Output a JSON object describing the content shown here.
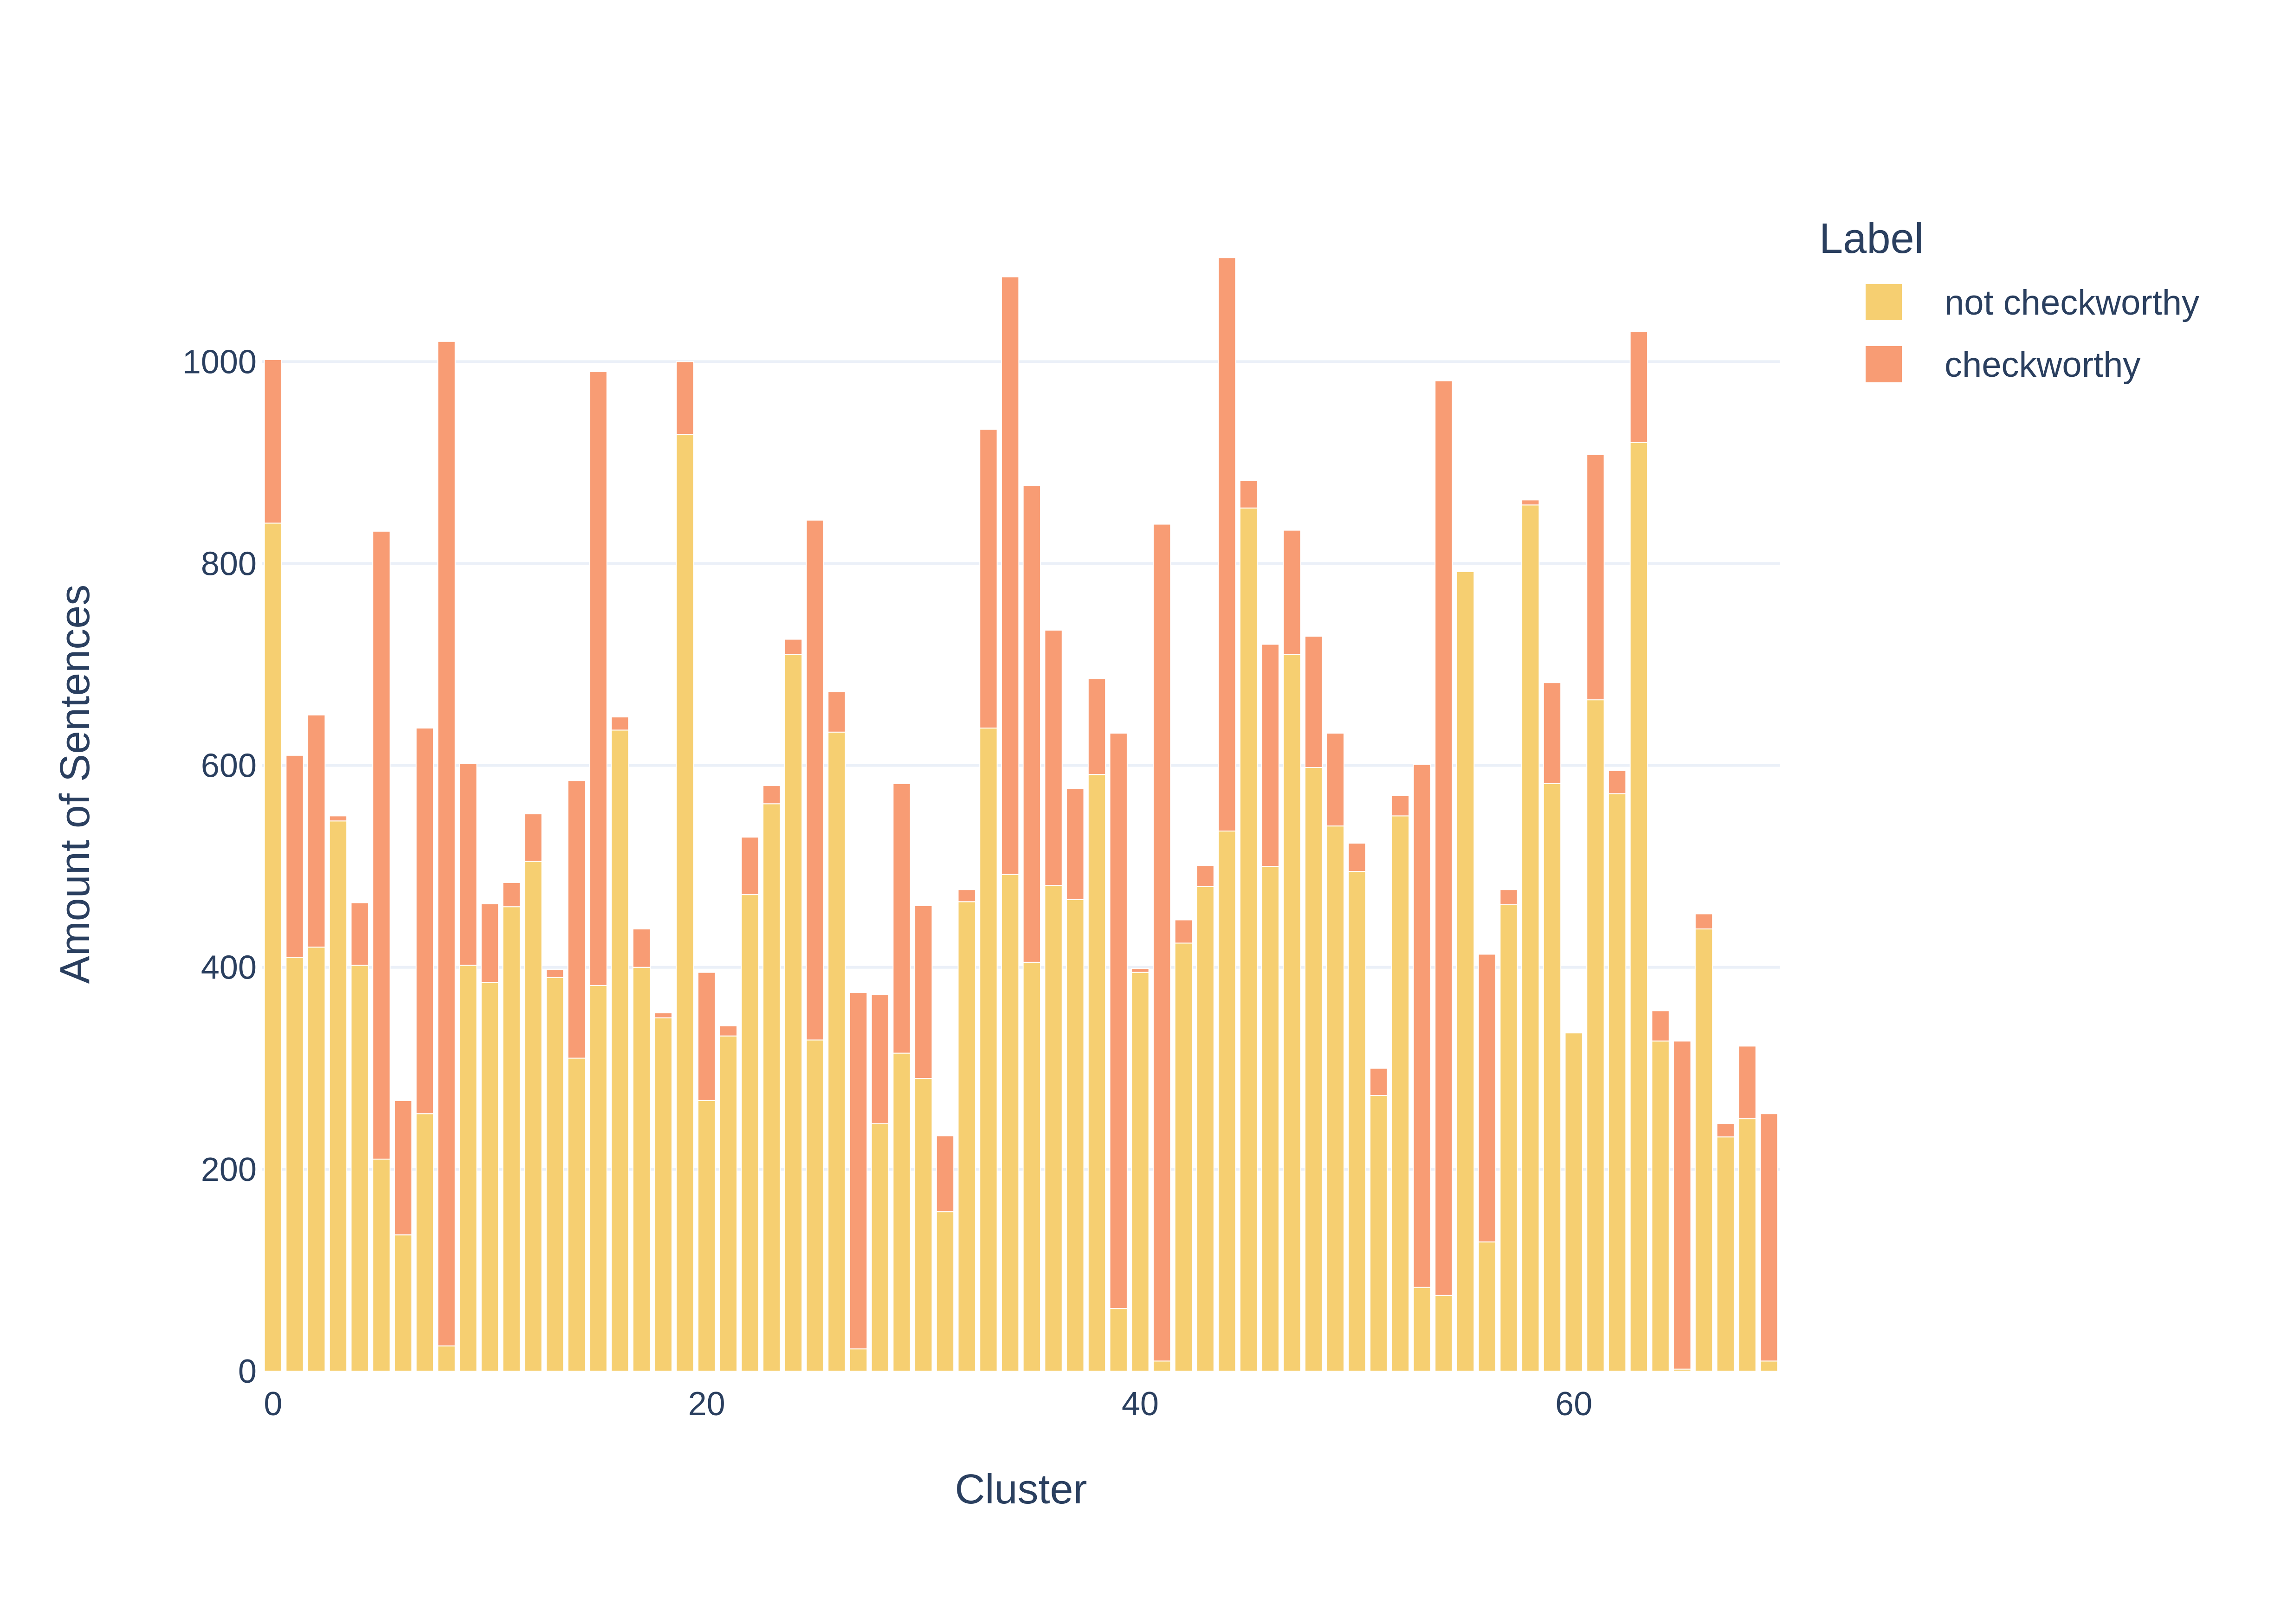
{
  "chart_data": {
    "type": "bar",
    "barmode": "stack",
    "xlabel": "Cluster",
    "ylabel": "Amount of Sentences",
    "xlim": [
      -0.5,
      69.5
    ],
    "ylim": [
      0,
      1110
    ],
    "x_ticks": [
      0,
      20,
      40,
      60
    ],
    "y_ticks": [
      0,
      200,
      400,
      600,
      800,
      1000
    ],
    "grid": true,
    "legend": {
      "title": "Label",
      "position": "top-right"
    },
    "categories": [
      0,
      1,
      2,
      3,
      4,
      5,
      6,
      7,
      8,
      9,
      10,
      11,
      12,
      13,
      14,
      15,
      16,
      17,
      18,
      19,
      20,
      21,
      22,
      23,
      24,
      25,
      26,
      27,
      28,
      29,
      30,
      31,
      32,
      33,
      34,
      35,
      36,
      37,
      38,
      39,
      40,
      41,
      42,
      43,
      44,
      45,
      46,
      47,
      48,
      49,
      50,
      51,
      52,
      53,
      54,
      55,
      56,
      57,
      58,
      59,
      60,
      61,
      62,
      63,
      64,
      65,
      66,
      67,
      68,
      69
    ],
    "series": [
      {
        "name": "not checkworthy",
        "color": "#f6cf71",
        "values": [
          840,
          410,
          420,
          545,
          402,
          210,
          135,
          255,
          25,
          402,
          385,
          460,
          505,
          390,
          310,
          382,
          635,
          400,
          350,
          928,
          268,
          332,
          472,
          562,
          710,
          328,
          633,
          22,
          245,
          315,
          290,
          158,
          465,
          637,
          492,
          405,
          481,
          467,
          591,
          62,
          395,
          10,
          424,
          480,
          535,
          855,
          500,
          710,
          598,
          540,
          495,
          273,
          550,
          83,
          75,
          792,
          128,
          462,
          858,
          582,
          335,
          665,
          572,
          920,
          327,
          2,
          438,
          232,
          250,
          10
        ],
        "negatives": []
      },
      {
        "name": "checkworthy",
        "color": "#f89c74",
        "values": [
          162,
          200,
          230,
          5,
          62,
          622,
          133,
          382,
          995,
          200,
          78,
          24,
          47,
          8,
          275,
          608,
          13,
          38,
          5,
          72,
          127,
          10,
          57,
          18,
          15,
          515,
          40,
          353,
          128,
          267,
          171,
          75,
          12,
          296,
          592,
          472,
          253,
          110,
          95,
          570,
          4,
          829,
          23,
          21,
          568,
          27,
          220,
          123,
          130,
          92,
          28,
          27,
          20,
          518,
          906,
          0,
          285,
          15,
          5,
          100,
          0,
          243,
          23,
          110,
          30,
          325,
          15,
          13,
          72,
          245
        ]
      }
    ]
  }
}
